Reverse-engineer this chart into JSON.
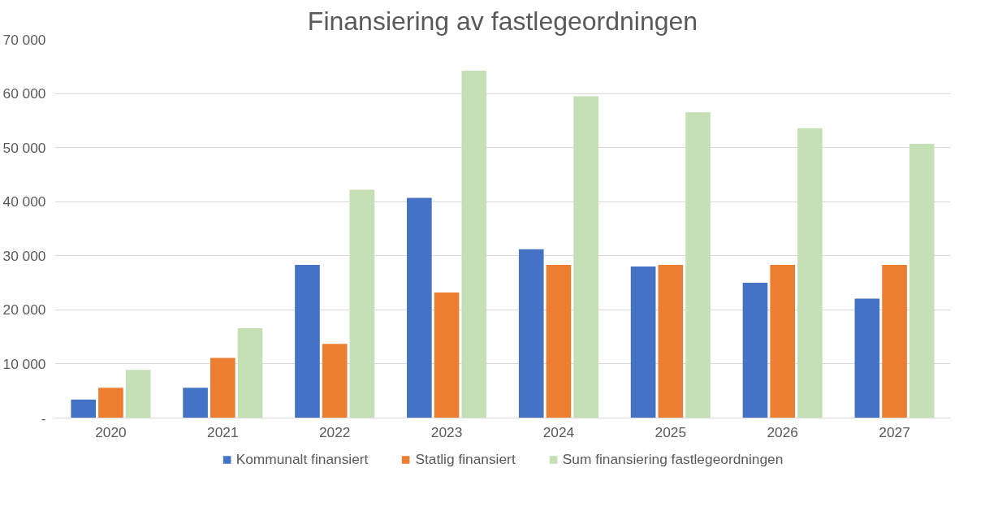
{
  "chart_data": {
    "type": "bar",
    "title": "Finansiering av fastlegeordningen",
    "categories": [
      "2020",
      "2021",
      "2022",
      "2023",
      "2024",
      "2025",
      "2026",
      "2027"
    ],
    "series": [
      {
        "name": "Kommunalt finansiert",
        "color": "#4472c4",
        "values": [
          3400,
          5600,
          28300,
          40700,
          31200,
          28000,
          25000,
          22100
        ]
      },
      {
        "name": "Statlig finansiert",
        "color": "#ed7d31",
        "values": [
          5600,
          11100,
          13700,
          23200,
          28300,
          28300,
          28300,
          28300
        ]
      },
      {
        "name": "Sum finansiering fastlegeordningen",
        "color": "#c5e0b4",
        "values": [
          8900,
          16600,
          42200,
          64200,
          59500,
          56500,
          53600,
          50700
        ]
      }
    ],
    "ylim": [
      0,
      70000
    ],
    "yticks": [
      {
        "value": 0,
        "label": "-"
      },
      {
        "value": 10000,
        "label": "10 000"
      },
      {
        "value": 20000,
        "label": "20 000"
      },
      {
        "value": 30000,
        "label": "30 000"
      },
      {
        "value": 40000,
        "label": "40 000"
      },
      {
        "value": 50000,
        "label": "50 000"
      },
      {
        "value": 60000,
        "label": "60 000"
      },
      {
        "value": 70000,
        "label": "70 000"
      }
    ],
    "grid": "y",
    "legend": "bottom"
  }
}
